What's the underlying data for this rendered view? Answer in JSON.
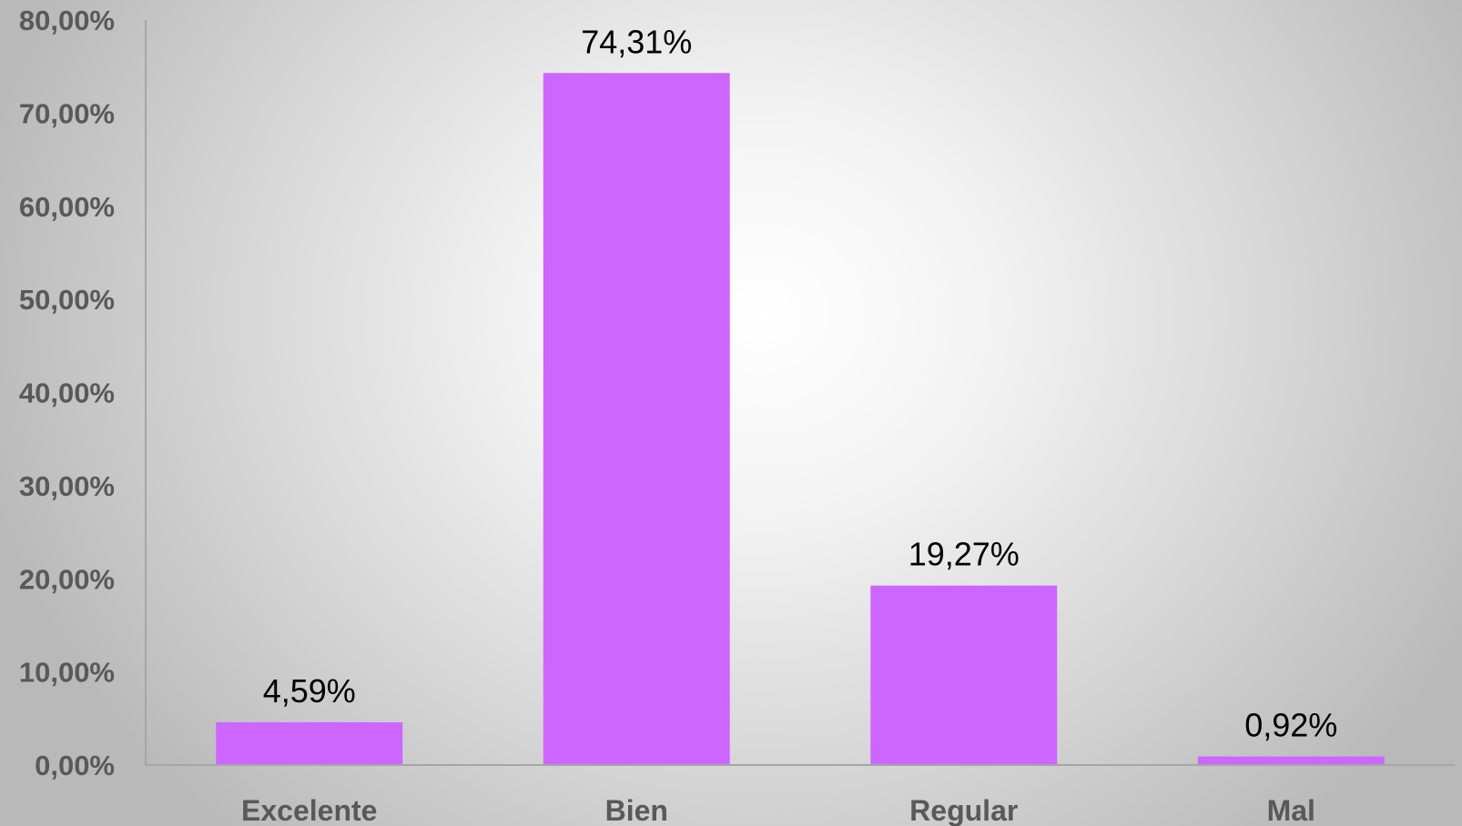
{
  "chart_data": {
    "type": "bar",
    "categories": [
      "Excelente",
      "Bien",
      "Regular",
      "Mal"
    ],
    "values": [
      4.59,
      74.31,
      19.27,
      0.92
    ],
    "data_labels": [
      "4,59%",
      "74,31%",
      "19,27%",
      "0,92%"
    ],
    "ylim": [
      0,
      80
    ],
    "yticks": [
      0,
      10,
      20,
      30,
      40,
      50,
      60,
      70,
      80
    ],
    "ytick_labels": [
      "0,00%",
      "10,00%",
      "20,00%",
      "30,00%",
      "40,00%",
      "50,00%",
      "60,00%",
      "70,00%",
      "80,00%"
    ],
    "grid": false,
    "legend": "none",
    "bar_color": "#cc66ff",
    "axis_color": "#a6a6a6",
    "tick_color": "#595959",
    "label_color": "#000000"
  }
}
